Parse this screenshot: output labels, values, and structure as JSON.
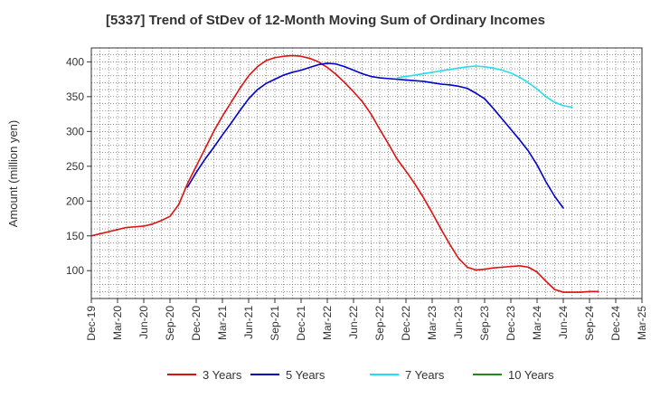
{
  "chart_data": {
    "type": "line",
    "title": "[5337]  Trend of StDev of 12-Month Moving Sum of Ordinary Incomes",
    "xlabel": "",
    "ylabel": "Amount (million yen)",
    "x_ticks": [
      "Dec-19",
      "Mar-20",
      "Jun-20",
      "Sep-20",
      "Dec-20",
      "Mar-21",
      "Jun-21",
      "Sep-21",
      "Dec-21",
      "Mar-22",
      "Jun-22",
      "Sep-22",
      "Dec-22",
      "Mar-23",
      "Jun-23",
      "Sep-23",
      "Dec-23",
      "Mar-24",
      "Jun-24",
      "Sep-24",
      "Dec-24",
      "Mar-25"
    ],
    "y_ticks": [
      100,
      150,
      200,
      250,
      300,
      350,
      400
    ],
    "ylim": [
      60,
      420
    ],
    "grid": true,
    "legend_position": "bottom",
    "series": [
      {
        "name": "3 Years",
        "color": "#dd1111",
        "values": [
          150,
          153,
          156,
          159,
          162,
          163,
          164,
          167,
          172,
          178,
          195,
          225,
          250,
          275,
          300,
          322,
          342,
          362,
          380,
          393,
          402,
          406,
          408,
          409,
          408,
          405,
          400,
          392,
          382,
          370,
          357,
          343,
          325,
          303,
          282,
          260,
          243,
          225,
          205,
          183,
          160,
          138,
          118,
          105,
          101,
          102,
          104,
          105,
          106,
          107,
          105,
          98,
          85,
          73,
          69,
          69,
          69,
          70,
          70
        ]
      },
      {
        "name": "5 Years",
        "color": "#0000cc",
        "start_index": 11,
        "values": [
          220,
          241,
          260,
          277,
          295,
          312,
          330,
          347,
          360,
          369,
          375,
          381,
          385,
          388,
          392,
          396,
          398,
          397,
          393,
          388,
          383,
          379,
          377,
          376,
          375,
          374,
          373,
          372,
          370,
          368,
          367,
          365,
          362,
          355,
          347,
          333,
          318,
          303,
          288,
          272,
          252,
          228,
          207,
          190
        ]
      },
      {
        "name": "7 Years",
        "color": "#22ddee",
        "start_index": 35,
        "values": [
          377,
          379,
          381,
          383,
          385,
          387,
          389,
          391,
          393,
          394,
          393,
          391,
          388,
          384,
          378,
          370,
          361,
          350,
          342,
          337,
          335
        ]
      },
      {
        "name": "10 Years",
        "color": "#228822",
        "values": []
      }
    ]
  }
}
